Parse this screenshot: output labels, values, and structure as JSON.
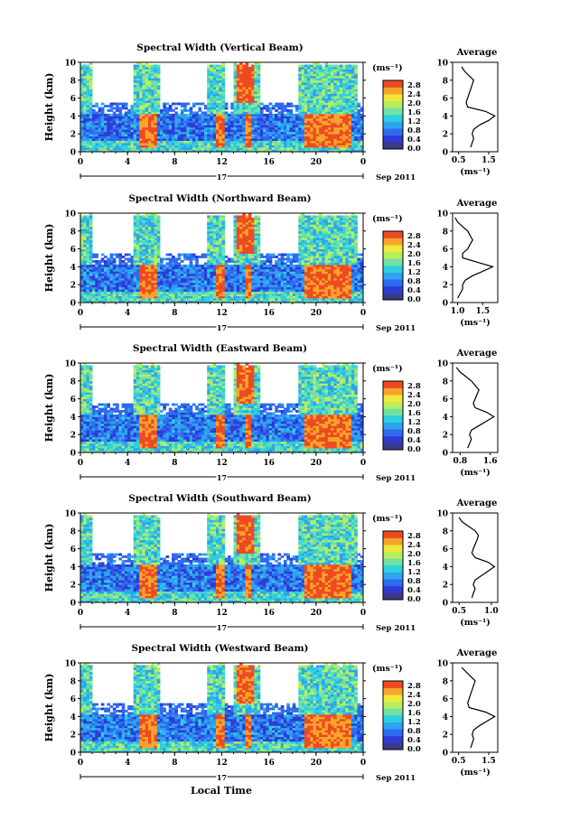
{
  "figure": {
    "xlabel": "Local Time",
    "avg_title": "Average",
    "avg_xlabel": "(ms⁻¹)",
    "colorbar_unit": "(ms⁻¹)",
    "colorbar_ticks": [
      "0.0",
      "0.4",
      "0.8",
      "1.2",
      "1.6",
      "2.0",
      "2.4",
      "2.8"
    ],
    "date_label": "Sep 2011",
    "day_label": "17",
    "colors": {
      "scale": [
        "#3a3a8a",
        "#2e3bd6",
        "#2f6bf0",
        "#2ea3ef",
        "#2fcfe0",
        "#6fe2a4",
        "#b8ee5c",
        "#f2e83a",
        "#f6a42a",
        "#ee4a22"
      ],
      "background": "#ffffff"
    }
  },
  "chart_data": [
    {
      "type": "heatmap",
      "title": "Spectral Width (Vertical Beam)",
      "xlabel": "Local Time",
      "ylabel": "Height (km)",
      "x_ticks": [
        "0",
        "4",
        "8",
        "12",
        "16",
        "20",
        "0"
      ],
      "xlim": [
        0,
        24
      ],
      "y_ticks": [
        "0",
        "2",
        "4",
        "6",
        "8",
        "10"
      ],
      "ylim": [
        0,
        10
      ],
      "colorbar_range": [
        0.0,
        2.8
      ],
      "average_profile": {
        "x_ticks": [
          "0.5",
          "1.5"
        ],
        "xlim": [
          0.3,
          1.8
        ],
        "height": [
          0.5,
          1,
          1.5,
          2,
          2.5,
          3,
          3.5,
          4,
          4.5,
          5,
          5.5,
          6,
          6.5,
          7,
          7.5,
          8,
          8.5,
          9,
          9.5
        ],
        "value": [
          0.9,
          0.95,
          1.0,
          0.95,
          1.0,
          1.2,
          1.5,
          1.7,
          1.4,
          0.8,
          0.75,
          0.8,
          0.85,
          0.9,
          0.95,
          1.0,
          0.85,
          0.7,
          0.6
        ]
      }
    },
    {
      "type": "heatmap",
      "title": "Spectral Width (Northward Beam)",
      "xlabel": "Local Time",
      "ylabel": "Height (km)",
      "x_ticks": [
        "0",
        "4",
        "8",
        "12",
        "16",
        "20",
        "0"
      ],
      "xlim": [
        0,
        24
      ],
      "y_ticks": [
        "0",
        "2",
        "4",
        "6",
        "8",
        "10"
      ],
      "ylim": [
        0,
        10
      ],
      "colorbar_range": [
        0.0,
        2.8
      ],
      "average_profile": {
        "x_ticks": [
          "1.0",
          "1.5"
        ],
        "xlim": [
          0.9,
          1.8
        ],
        "height": [
          0.5,
          1,
          1.5,
          2,
          2.5,
          3,
          3.5,
          4,
          4.5,
          5,
          5.5,
          6,
          6.5,
          7,
          7.5,
          8,
          8.5,
          9,
          9.5
        ],
        "value": [
          1.0,
          1.05,
          1.1,
          1.1,
          1.15,
          1.3,
          1.5,
          1.7,
          1.4,
          1.1,
          1.1,
          1.2,
          1.25,
          1.3,
          1.25,
          1.2,
          1.1,
          1.0,
          0.95
        ]
      }
    },
    {
      "type": "heatmap",
      "title": "Spectral Width (Eastward Beam)",
      "xlabel": "Local Time",
      "ylabel": "Height (km)",
      "x_ticks": [
        "0",
        "4",
        "8",
        "12",
        "16",
        "20",
        "0"
      ],
      "xlim": [
        0,
        24
      ],
      "y_ticks": [
        "0",
        "2",
        "4",
        "6",
        "8",
        "10"
      ],
      "ylim": [
        0,
        10
      ],
      "colorbar_range": [
        0.0,
        2.8
      ],
      "average_profile": {
        "x_ticks": [
          "0.8",
          "1.6"
        ],
        "xlim": [
          0.6,
          1.8
        ],
        "height": [
          0.5,
          1,
          1.5,
          2,
          2.5,
          3,
          3.5,
          4,
          4.5,
          5,
          5.5,
          6,
          6.5,
          7,
          7.5,
          8,
          8.5,
          9,
          9.5
        ],
        "value": [
          1.0,
          1.05,
          1.1,
          1.05,
          1.1,
          1.3,
          1.5,
          1.7,
          1.5,
          1.2,
          1.15,
          1.2,
          1.25,
          1.3,
          1.2,
          1.1,
          0.95,
          0.8,
          0.7
        ]
      }
    },
    {
      "type": "heatmap",
      "title": "Spectral Width (Southward Beam)",
      "xlabel": "Local Time",
      "ylabel": "Height (km)",
      "x_ticks": [
        "0",
        "4",
        "8",
        "12",
        "16",
        "20",
        "0"
      ],
      "xlim": [
        0,
        24
      ],
      "y_ticks": [
        "0",
        "2",
        "4",
        "6",
        "8",
        "10"
      ],
      "ylim": [
        0,
        10
      ],
      "colorbar_range": [
        0.0,
        2.8
      ],
      "average_profile": {
        "x_ticks": [
          "0.5",
          "1.0"
        ],
        "xlim": [
          0.4,
          1.1
        ],
        "height": [
          0.5,
          1,
          1.5,
          2,
          2.5,
          3,
          3.5,
          4,
          4.5,
          5,
          5.5,
          6,
          6.5,
          7,
          7.5,
          8,
          8.5,
          9,
          9.5
        ],
        "value": [
          0.7,
          0.72,
          0.75,
          0.72,
          0.75,
          0.85,
          0.95,
          1.05,
          0.95,
          0.75,
          0.7,
          0.72,
          0.75,
          0.78,
          0.8,
          0.75,
          0.65,
          0.55,
          0.5
        ]
      }
    },
    {
      "type": "heatmap",
      "title": "Spectral Width (Westward Beam)",
      "xlabel": "Local Time",
      "ylabel": "Height (km)",
      "x_ticks": [
        "0",
        "4",
        "8",
        "12",
        "16",
        "20",
        "0"
      ],
      "xlim": [
        0,
        24
      ],
      "y_ticks": [
        "0",
        "2",
        "4",
        "6",
        "8",
        "10"
      ],
      "ylim": [
        0,
        10
      ],
      "colorbar_range": [
        0.0,
        2.8
      ],
      "average_profile": {
        "x_ticks": [
          "0.5",
          "1.5"
        ],
        "xlim": [
          0.3,
          1.8
        ],
        "height": [
          0.5,
          1,
          1.5,
          2,
          2.5,
          3,
          3.5,
          4,
          4.5,
          5,
          5.5,
          6,
          6.5,
          7,
          7.5,
          8,
          8.5,
          9,
          9.5
        ],
        "value": [
          0.9,
          0.95,
          1.0,
          0.95,
          1.0,
          1.2,
          1.45,
          1.7,
          1.4,
          0.85,
          0.8,
          0.85,
          0.9,
          0.95,
          1.0,
          1.05,
          0.9,
          0.75,
          0.6
        ]
      }
    }
  ]
}
